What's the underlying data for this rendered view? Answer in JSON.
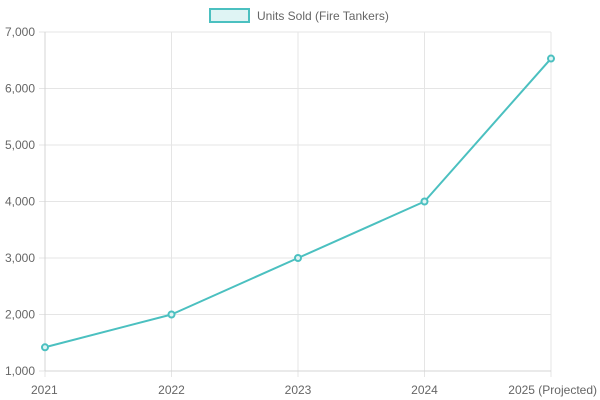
{
  "chart_data": {
    "type": "line",
    "title": "",
    "xlabel": "",
    "ylabel": "",
    "categories": [
      "2021",
      "2022",
      "2023",
      "2024",
      "2025 (Projected)"
    ],
    "series": [
      {
        "name": "Units Sold (Fire Tankers)",
        "values": [
          1420,
          2000,
          3000,
          4000,
          6530
        ],
        "color": "#4bc0c0",
        "fill": "#dff4f4"
      }
    ],
    "ylim": [
      1000,
      7000
    ],
    "yticks": [
      1000,
      2000,
      3000,
      4000,
      5000,
      6000,
      7000
    ],
    "ytick_labels": [
      "1,000",
      "2,000",
      "3,000",
      "4,000",
      "5,000",
      "6,000",
      "7,000"
    ],
    "grid": true,
    "legend_position": "top-center",
    "grid_color": "#e5e5e5",
    "axis_color": "#d4d4d4",
    "text_color": "#666666"
  }
}
